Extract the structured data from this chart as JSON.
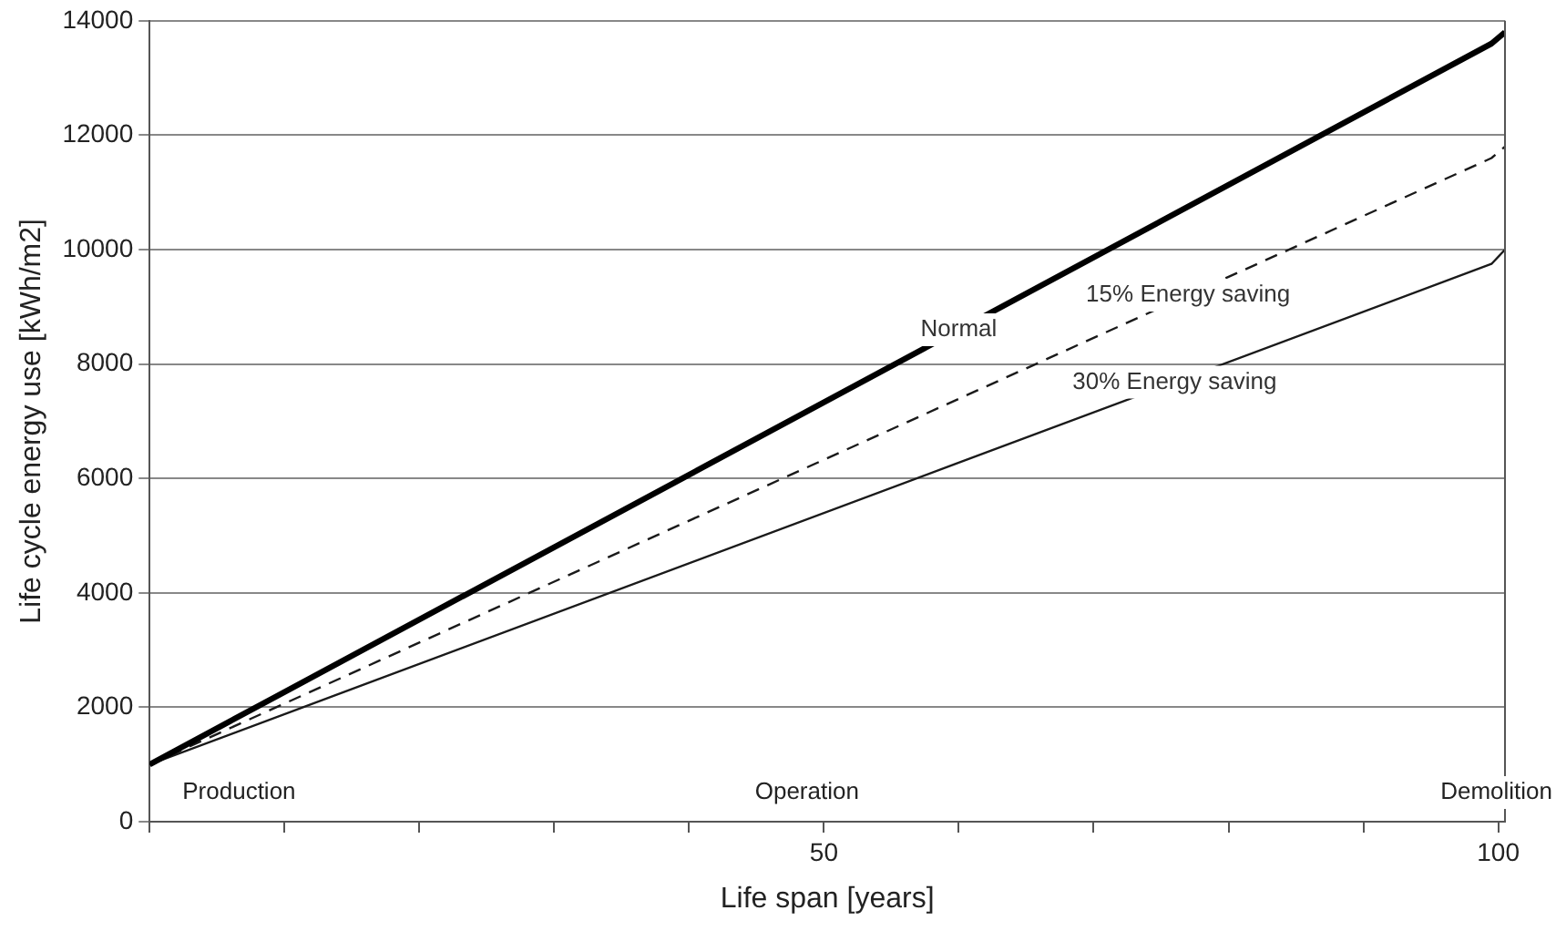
{
  "chart_data": {
    "type": "line",
    "xlabel": "Life span [years]",
    "ylabel": "Life cycle energy use [kWh/m2]",
    "x": [
      0,
      99.5,
      100.5
    ],
    "series": [
      {
        "name": "Normal",
        "color": "#000000",
        "values": [
          1000,
          13600,
          13800
        ],
        "line_style": "solid"
      },
      {
        "name": "15% Energy saving",
        "color": "#1a1a1a",
        "values": [
          1000,
          11600,
          11800
        ],
        "line_style": "dashed"
      },
      {
        "name": "30% Energy saving",
        "color": "#1a1a1a",
        "values": [
          1000,
          9750,
          10000
        ],
        "line_style": "solid"
      }
    ],
    "xlim": [
      0,
      100.5
    ],
    "xticks": [
      {
        "value": 0,
        "label": null
      },
      {
        "value": 10,
        "label": null
      },
      {
        "value": 20,
        "label": null
      },
      {
        "value": 30,
        "label": null
      },
      {
        "value": 40,
        "label": null
      },
      50,
      {
        "value": 60,
        "label": null
      },
      {
        "value": 70,
        "label": null
      },
      {
        "value": 80,
        "label": null
      },
      {
        "value": 90,
        "label": null
      },
      100
    ],
    "ylim": [
      0,
      14000
    ],
    "yticks": [
      0,
      2000,
      4000,
      6000,
      8000,
      10000,
      12000,
      14000
    ],
    "grid": "y",
    "legend": false,
    "marker": "none",
    "annotations": [
      "Production",
      "Operation",
      "Demolition"
    ]
  }
}
